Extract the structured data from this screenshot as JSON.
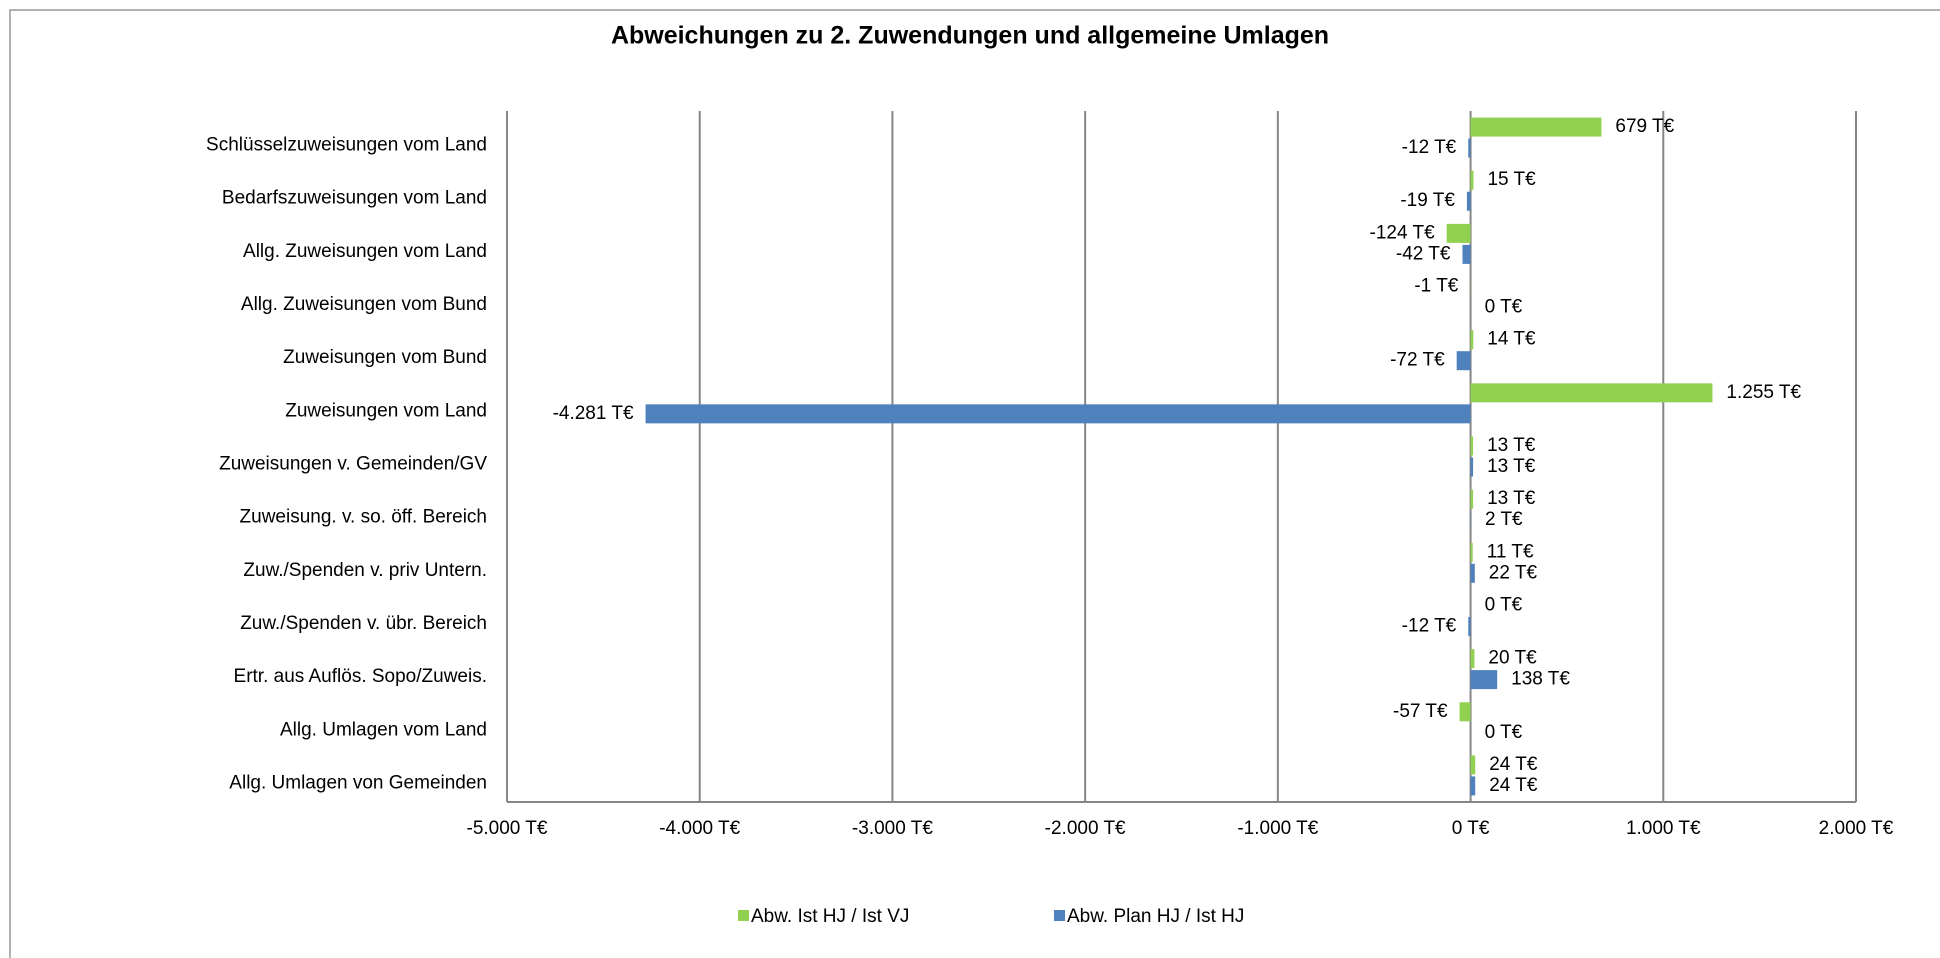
{
  "chart_data": {
    "type": "hbar",
    "title": "Abweichungen zu 2. Zuwendungen und allgemeine Umlagen",
    "categories": [
      "Schlüsselzuweisungen vom Land",
      "Bedarfszuweisungen vom Land",
      "Allg. Zuweisungen vom Land",
      "Allg. Zuweisungen vom Bund",
      "Zuweisungen vom Bund",
      "Zuweisungen vom Land",
      "Zuweisungen v. Gemeinden/GV",
      "Zuweisung. v. so. öff. Bereich",
      "Zuw./Spenden v. priv Untern.",
      "Zuw./Spenden v. übr. Bereich",
      "Ertr. aus Auflös. Sopo/Zuweis.",
      "Allg. Umlagen vom Land",
      "Allg. Umlagen von Gemeinden"
    ],
    "series": [
      {
        "name": "Abw. Ist HJ / Ist VJ",
        "color": "#92d050",
        "values": [
          679,
          15,
          -124,
          -1,
          14,
          1255,
          13,
          13,
          11,
          0,
          20,
          -57,
          24
        ],
        "value_labels": [
          "679 T€",
          "15 T€",
          "-124 T€",
          "-1 T€",
          "14 T€",
          "1.255 T€",
          "13 T€",
          "13 T€",
          "11 T€",
          "0 T€",
          "20 T€",
          "-57 T€",
          "24 T€"
        ]
      },
      {
        "name": "Abw. Plan HJ / Ist HJ",
        "color": "#4f81bd",
        "values": [
          -12,
          -19,
          -42,
          0,
          -72,
          -4281,
          13,
          2,
          22,
          -12,
          138,
          0,
          24
        ],
        "value_labels": [
          "-12 T€",
          "-19 T€",
          "-42 T€",
          "0 T€",
          "-72 T€",
          "-4.281 T€",
          "13 T€",
          "2 T€",
          "22 T€",
          "-12 T€",
          "138 T€",
          "0 T€",
          "24 T€"
        ]
      }
    ],
    "xlim": [
      -5000,
      2000
    ],
    "xticks": [
      {
        "value": -5000,
        "label": "-5.000 T€"
      },
      {
        "value": -4000,
        "label": "-4.000 T€"
      },
      {
        "value": -3000,
        "label": "-3.000 T€"
      },
      {
        "value": -2000,
        "label": "-2.000 T€"
      },
      {
        "value": -1000,
        "label": "-1.000 T€"
      },
      {
        "value": 0,
        "label": "0 T€"
      },
      {
        "value": 1000,
        "label": "1.000 T€"
      },
      {
        "value": 2000,
        "label": "2.000 T€"
      }
    ],
    "grid": true,
    "legend": "bottom"
  }
}
